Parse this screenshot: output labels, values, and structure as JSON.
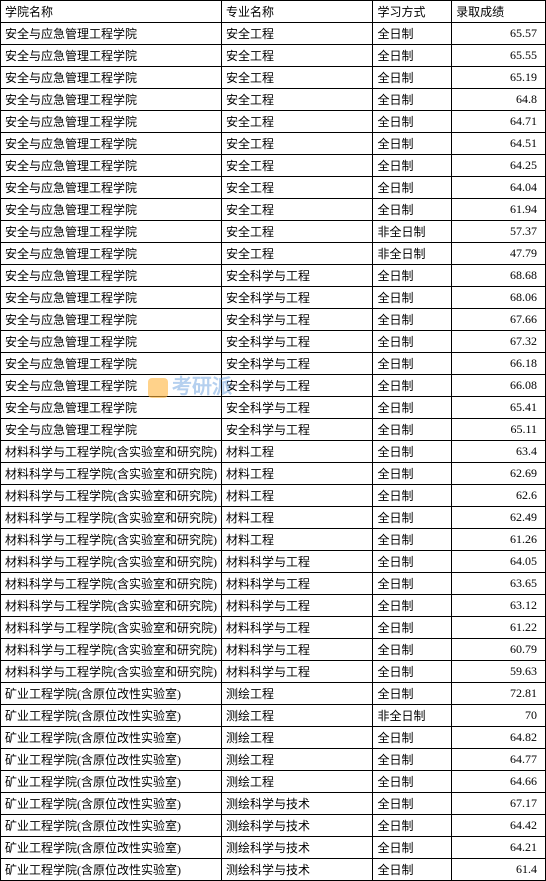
{
  "table": {
    "columns": [
      "学院名称",
      "专业名称",
      "学习方式",
      "录取成绩"
    ],
    "rows": [
      [
        "安全与应急管理工程学院",
        "安全工程",
        "全日制",
        "65.57"
      ],
      [
        "安全与应急管理工程学院",
        "安全工程",
        "全日制",
        "65.55"
      ],
      [
        "安全与应急管理工程学院",
        "安全工程",
        "全日制",
        "65.19"
      ],
      [
        "安全与应急管理工程学院",
        "安全工程",
        "全日制",
        "64.8"
      ],
      [
        "安全与应急管理工程学院",
        "安全工程",
        "全日制",
        "64.71"
      ],
      [
        "安全与应急管理工程学院",
        "安全工程",
        "全日制",
        "64.51"
      ],
      [
        "安全与应急管理工程学院",
        "安全工程",
        "全日制",
        "64.25"
      ],
      [
        "安全与应急管理工程学院",
        "安全工程",
        "全日制",
        "64.04"
      ],
      [
        "安全与应急管理工程学院",
        "安全工程",
        "全日制",
        "61.94"
      ],
      [
        "安全与应急管理工程学院",
        "安全工程",
        "非全日制",
        "57.37"
      ],
      [
        "安全与应急管理工程学院",
        "安全工程",
        "非全日制",
        "47.79"
      ],
      [
        "安全与应急管理工程学院",
        "安全科学与工程",
        "全日制",
        "68.68"
      ],
      [
        "安全与应急管理工程学院",
        "安全科学与工程",
        "全日制",
        "68.06"
      ],
      [
        "安全与应急管理工程学院",
        "安全科学与工程",
        "全日制",
        "67.66"
      ],
      [
        "安全与应急管理工程学院",
        "安全科学与工程",
        "全日制",
        "67.32"
      ],
      [
        "安全与应急管理工程学院",
        "安全科学与工程",
        "全日制",
        "66.18"
      ],
      [
        "安全与应急管理工程学院",
        "安全科学与工程",
        "全日制",
        "66.08"
      ],
      [
        "安全与应急管理工程学院",
        "安全科学与工程",
        "全日制",
        "65.41"
      ],
      [
        "安全与应急管理工程学院",
        "安全科学与工程",
        "全日制",
        "65.11"
      ],
      [
        "材料科学与工程学院(含实验室和研究院)",
        "材料工程",
        "全日制",
        "63.4"
      ],
      [
        "材料科学与工程学院(含实验室和研究院)",
        "材料工程",
        "全日制",
        "62.69"
      ],
      [
        "材料科学与工程学院(含实验室和研究院)",
        "材料工程",
        "全日制",
        "62.6"
      ],
      [
        "材料科学与工程学院(含实验室和研究院)",
        "材料工程",
        "全日制",
        "62.49"
      ],
      [
        "材料科学与工程学院(含实验室和研究院)",
        "材料工程",
        "全日制",
        "61.26"
      ],
      [
        "材料科学与工程学院(含实验室和研究院)",
        "材料科学与工程",
        "全日制",
        "64.05"
      ],
      [
        "材料科学与工程学院(含实验室和研究院)",
        "材料科学与工程",
        "全日制",
        "63.65"
      ],
      [
        "材料科学与工程学院(含实验室和研究院)",
        "材料科学与工程",
        "全日制",
        "63.12"
      ],
      [
        "材料科学与工程学院(含实验室和研究院)",
        "材料科学与工程",
        "全日制",
        "61.22"
      ],
      [
        "材料科学与工程学院(含实验室和研究院)",
        "材料科学与工程",
        "全日制",
        "60.79"
      ],
      [
        "材料科学与工程学院(含实验室和研究院)",
        "材料科学与工程",
        "全日制",
        "59.63"
      ],
      [
        "矿业工程学院(含原位改性实验室)",
        "测绘工程",
        "全日制",
        "72.81"
      ],
      [
        "矿业工程学院(含原位改性实验室)",
        "测绘工程",
        "非全日制",
        "70"
      ],
      [
        "矿业工程学院(含原位改性实验室)",
        "测绘工程",
        "全日制",
        "64.82"
      ],
      [
        "矿业工程学院(含原位改性实验室)",
        "测绘工程",
        "全日制",
        "64.77"
      ],
      [
        "矿业工程学院(含原位改性实验室)",
        "测绘工程",
        "全日制",
        "64.66"
      ],
      [
        "矿业工程学院(含原位改性实验室)",
        "测绘科学与技术",
        "全日制",
        "67.17"
      ],
      [
        "矿业工程学院(含原位改性实验室)",
        "测绘科学与技术",
        "全日制",
        "64.42"
      ],
      [
        "矿业工程学院(含原位改性实验室)",
        "测绘科学与技术",
        "全日制",
        "64.21"
      ],
      [
        "矿业工程学院(含原位改性实验室)",
        "测绘科学与技术",
        "全日制",
        "61.4"
      ]
    ],
    "col_classes": [
      "col-college",
      "col-major",
      "col-mode",
      "col-score"
    ]
  },
  "watermark": {
    "text": "考研派"
  }
}
